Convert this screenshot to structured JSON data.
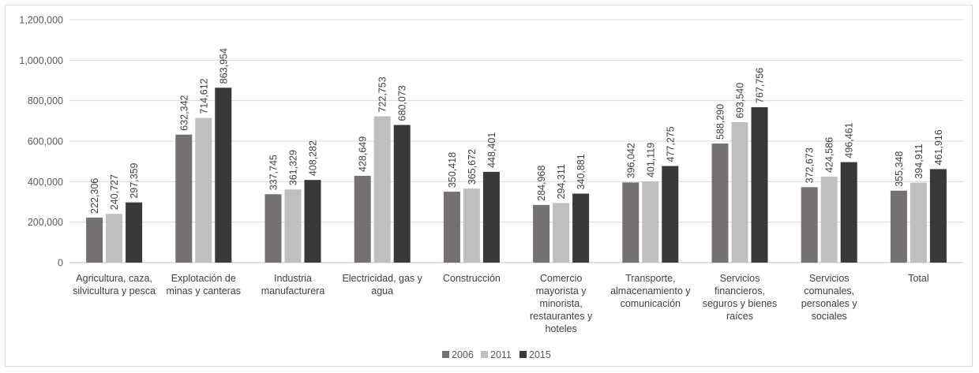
{
  "chart_data": {
    "type": "bar",
    "title": "",
    "xlabel": "",
    "ylabel": "",
    "ylim": [
      0,
      1200000
    ],
    "yticks": [
      "0",
      "200,000",
      "400,000",
      "600,000",
      "800,000",
      "1,000,000",
      "1,200,000"
    ],
    "ytick_values": [
      0,
      200000,
      400000,
      600000,
      800000,
      1000000,
      1200000
    ],
    "grid": true,
    "legend_position": "bottom",
    "categories": [
      [
        "Agricultura, caza,",
        "silvicultura y pesca"
      ],
      [
        "Explotación de",
        "minas y canteras"
      ],
      [
        "Industria",
        "manufacturera"
      ],
      [
        "Electricidad, gas y",
        "agua"
      ],
      [
        "Construcción"
      ],
      [
        "Comercio",
        "mayorista y",
        "minorista,",
        "restaurantes y",
        "hoteles"
      ],
      [
        "Transporte,",
        "almacenamiento y",
        "comunicación"
      ],
      [
        "Servicios",
        "financieros,",
        "seguros y bienes",
        "raíces"
      ],
      [
        "Servicios",
        "comunales,",
        "personales y",
        "sociales"
      ],
      [
        "Total"
      ]
    ],
    "series": [
      {
        "name": "2006",
        "color": "#767171",
        "values": [
          222306,
          632342,
          337745,
          428649,
          350418,
          284968,
          396042,
          588290,
          372673,
          355348
        ],
        "labels": [
          "222,306",
          "632,342",
          "337,745",
          "428,649",
          "350,418",
          "284,968",
          "396,042",
          "588,290",
          "372,673",
          "355,348"
        ]
      },
      {
        "name": "2011",
        "color": "#bfbfbf",
        "values": [
          240727,
          714612,
          361329,
          722753,
          365672,
          294311,
          401119,
          693540,
          424586,
          394911
        ],
        "labels": [
          "240,727",
          "714,612",
          "361,329",
          "722,753",
          "365,672",
          "294,311",
          "401,119",
          "693,540",
          "424,586",
          "394,911"
        ]
      },
      {
        "name": "2015",
        "color": "#3a3838",
        "values": [
          297359,
          863954,
          408282,
          680073,
          448401,
          340881,
          477275,
          767756,
          496461,
          461916
        ],
        "labels": [
          "297,359",
          "863,954",
          "408,282",
          "680,073",
          "448,401",
          "340,881",
          "477,275",
          "767,756",
          "496,461",
          "461,916"
        ]
      }
    ]
  }
}
